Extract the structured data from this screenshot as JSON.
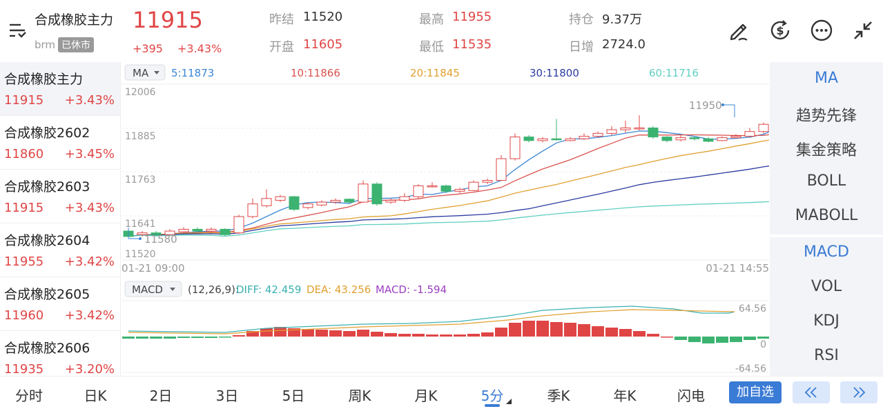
{
  "header": {
    "name": "合成橡胶主力",
    "code": "brm",
    "status_badge": "已休市",
    "price": "11915",
    "change": "+395",
    "change_pct": "+3.43%",
    "stats": {
      "prev_close_label": "昨结",
      "prev_close": "11520",
      "open_label": "开盘",
      "open": "11605",
      "high_label": "最高",
      "high": "11955",
      "low_label": "最低",
      "low": "11535",
      "oi_label": "持仓",
      "oi": "9.37万",
      "oi_chg_label": "日增",
      "oi_chg": "2724.0"
    },
    "tools": [
      "edit-pen-icon",
      "currency-refresh-icon",
      "more-dots-icon",
      "collapse-arrows-icon"
    ]
  },
  "sidebar": {
    "items": [
      {
        "name": "合成橡胶主力",
        "price": "11915",
        "pct": "+3.43%"
      },
      {
        "name": "合成橡胶2602",
        "price": "11860",
        "pct": "+3.45%"
      },
      {
        "name": "合成橡胶2603",
        "price": "11915",
        "pct": "+3.43%"
      },
      {
        "name": "合成橡胶2604",
        "price": "11955",
        "pct": "+3.42%"
      },
      {
        "name": "合成橡胶2605",
        "price": "11960",
        "pct": "+3.42%"
      },
      {
        "name": "合成橡胶2606",
        "price": "11935",
        "pct": "+3.20%"
      }
    ]
  },
  "chart": {
    "ma_selector": "MA",
    "ma_values": [
      {
        "label": "5:11873",
        "color": "#3a86d4"
      },
      {
        "label": "10:11866",
        "color": "#d9534f"
      },
      {
        "label": "20:11845",
        "color": "#e0a030"
      },
      {
        "label": "30:11800",
        "color": "#2a3aa0"
      },
      {
        "label": "60:11716",
        "color": "#5fcfc0"
      }
    ],
    "y_ticks": [
      "12006",
      "11885",
      "11763",
      "11641",
      "11520"
    ],
    "high_marker": "11950",
    "low_marker": "11580",
    "time_start": "01-21 09:00",
    "time_end": "01-21 14:55",
    "macd_selector": "MACD",
    "macd_params": "(12,26,9):",
    "diff_label": "DIFF: 42.459",
    "dea_label": "DEA: 43.256",
    "macd_label": "MACD: -1.594",
    "macd_top": "64.56",
    "macd_zero": "0",
    "macd_bottom": "-64.56",
    "candles": [
      {
        "o": 11600,
        "c": 11585,
        "h": 11605,
        "l": 11580
      },
      {
        "o": 11590,
        "c": 11595,
        "h": 11600,
        "l": 11585
      },
      {
        "o": 11595,
        "c": 11590,
        "h": 11600,
        "l": 11585
      },
      {
        "o": 11590,
        "c": 11600,
        "h": 11605,
        "l": 11588
      },
      {
        "o": 11598,
        "c": 11605,
        "h": 11610,
        "l": 11595
      },
      {
        "o": 11605,
        "c": 11600,
        "h": 11610,
        "l": 11595
      },
      {
        "o": 11600,
        "c": 11605,
        "h": 11610,
        "l": 11595
      },
      {
        "o": 11605,
        "c": 11590,
        "h": 11608,
        "l": 11585
      },
      {
        "o": 11595,
        "c": 11640,
        "h": 11645,
        "l": 11592
      },
      {
        "o": 11640,
        "c": 11675,
        "h": 11690,
        "l": 11635
      },
      {
        "o": 11670,
        "c": 11690,
        "h": 11715,
        "l": 11665
      },
      {
        "o": 11685,
        "c": 11695,
        "h": 11700,
        "l": 11680
      },
      {
        "o": 11695,
        "c": 11660,
        "h": 11698,
        "l": 11655
      },
      {
        "o": 11665,
        "c": 11675,
        "h": 11680,
        "l": 11660
      },
      {
        "o": 11672,
        "c": 11680,
        "h": 11685,
        "l": 11668
      },
      {
        "o": 11680,
        "c": 11685,
        "h": 11690,
        "l": 11675
      },
      {
        "o": 11688,
        "c": 11680,
        "h": 11690,
        "l": 11675
      },
      {
        "o": 11680,
        "c": 11730,
        "h": 11740,
        "l": 11678
      },
      {
        "o": 11730,
        "c": 11675,
        "h": 11735,
        "l": 11670
      },
      {
        "o": 11680,
        "c": 11685,
        "h": 11690,
        "l": 11675
      },
      {
        "o": 11685,
        "c": 11695,
        "h": 11705,
        "l": 11680
      },
      {
        "o": 11695,
        "c": 11725,
        "h": 11730,
        "l": 11690
      },
      {
        "o": 11725,
        "c": 11725,
        "h": 11735,
        "l": 11720
      },
      {
        "o": 11725,
        "c": 11710,
        "h": 11728,
        "l": 11705
      },
      {
        "o": 11710,
        "c": 11715,
        "h": 11720,
        "l": 11705
      },
      {
        "o": 11712,
        "c": 11735,
        "h": 11740,
        "l": 11710
      },
      {
        "o": 11735,
        "c": 11740,
        "h": 11745,
        "l": 11730
      },
      {
        "o": 11740,
        "c": 11800,
        "h": 11810,
        "l": 11738
      },
      {
        "o": 11800,
        "c": 11860,
        "h": 11870,
        "l": 11795
      },
      {
        "o": 11860,
        "c": 11850,
        "h": 11865,
        "l": 11845
      },
      {
        "o": 11850,
        "c": 11855,
        "h": 11860,
        "l": 11845
      },
      {
        "o": 11855,
        "c": 11852,
        "h": 11910,
        "l": 11850
      },
      {
        "o": 11850,
        "c": 11855,
        "h": 11860,
        "l": 11848
      },
      {
        "o": 11855,
        "c": 11862,
        "h": 11870,
        "l": 11852
      },
      {
        "o": 11862,
        "c": 11870,
        "h": 11875,
        "l": 11858
      },
      {
        "o": 11870,
        "c": 11880,
        "h": 11890,
        "l": 11865
      },
      {
        "o": 11880,
        "c": 11885,
        "h": 11905,
        "l": 11872
      },
      {
        "o": 11883,
        "c": 11885,
        "h": 11920,
        "l": 11878
      },
      {
        "o": 11885,
        "c": 11860,
        "h": 11890,
        "l": 11855
      },
      {
        "o": 11860,
        "c": 11850,
        "h": 11862,
        "l": 11845
      },
      {
        "o": 11852,
        "c": 11858,
        "h": 11865,
        "l": 11848
      },
      {
        "o": 11858,
        "c": 11855,
        "h": 11862,
        "l": 11850
      },
      {
        "o": 11855,
        "c": 11848,
        "h": 11860,
        "l": 11845
      },
      {
        "o": 11850,
        "c": 11858,
        "h": 11862,
        "l": 11848
      },
      {
        "o": 11858,
        "c": 11862,
        "h": 11868,
        "l": 11855
      },
      {
        "o": 11862,
        "c": 11875,
        "h": 11885,
        "l": 11858
      },
      {
        "o": 11875,
        "c": 11895,
        "h": 11900,
        "l": 11870
      },
      {
        "o": 11895,
        "c": 11925,
        "h": 11950,
        "l": 11890
      }
    ],
    "macd_bars": [
      -3,
      -3,
      -3,
      -3,
      -2,
      -2,
      -2,
      -1,
      2,
      8,
      12,
      14,
      12,
      11,
      10,
      9,
      8,
      10,
      7,
      5,
      4,
      4,
      3,
      3,
      3,
      4,
      6,
      13,
      20,
      23,
      23,
      21,
      20,
      18,
      15,
      13,
      11,
      8,
      4,
      0,
      -5,
      -8,
      -10,
      -9,
      -8,
      -5,
      -3,
      -1
    ]
  },
  "indicators": {
    "main": [
      "MA",
      "趋势先锋",
      "集金策略",
      "BOLL",
      "MABOLL"
    ],
    "sub": [
      "MACD",
      "VOL",
      "KDJ",
      "RSI"
    ],
    "active_main": "MA",
    "active_sub": "MACD"
  },
  "bottom": {
    "tabs": [
      "分时",
      "日K",
      "2日",
      "3日",
      "5日",
      "周K",
      "月K",
      "5分",
      "季K",
      "年K",
      "闪电"
    ],
    "active_tab": "5分",
    "add_label": "加自选"
  },
  "colors": {
    "up": "#e04545",
    "down": "#3cb371",
    "accent": "#3a7bd5"
  }
}
